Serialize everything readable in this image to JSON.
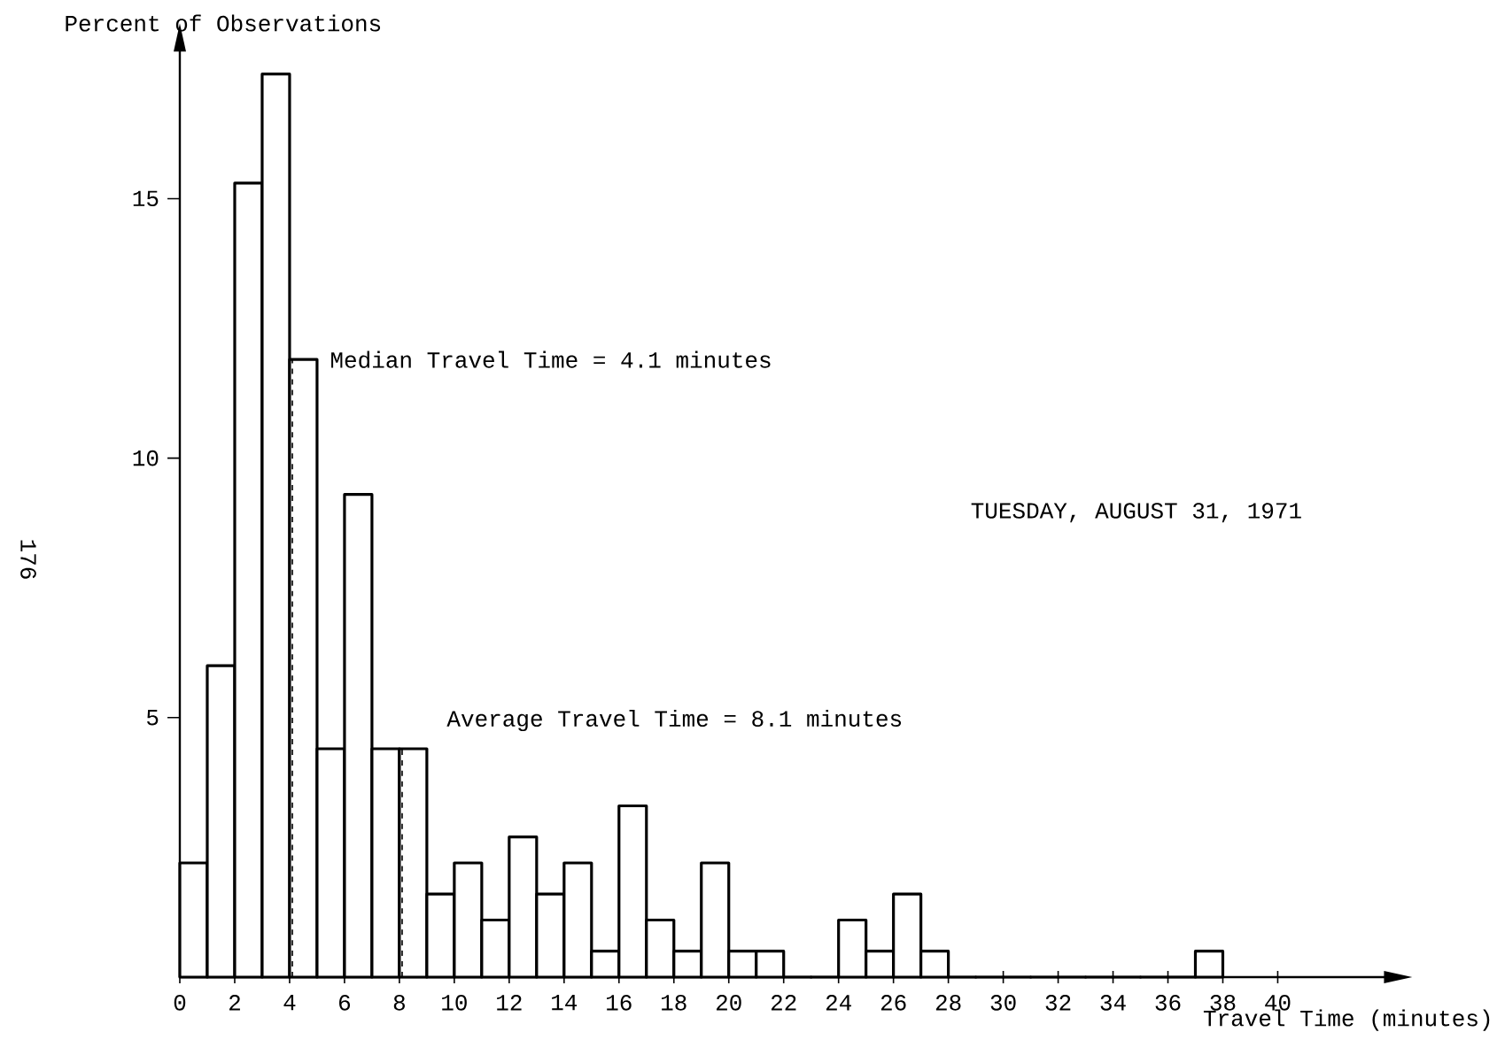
{
  "chart_data": {
    "type": "histogram",
    "xlabel": "Travel Time (minutes)",
    "ylabel": "Percent of Observations",
    "bins": [
      0,
      1,
      2,
      3,
      4,
      5,
      6,
      7,
      8,
      9,
      10,
      11,
      12,
      13,
      14,
      15,
      16,
      17,
      18,
      19,
      20,
      21,
      22,
      23,
      24,
      25,
      26,
      27,
      28,
      29,
      30,
      31,
      32,
      33,
      34,
      35,
      36,
      37,
      38
    ],
    "values": [
      2.2,
      6.0,
      15.3,
      17.4,
      11.9,
      4.4,
      9.3,
      4.4,
      4.4,
      1.6,
      2.2,
      1.1,
      2.7,
      1.6,
      2.2,
      0.5,
      3.3,
      1.1,
      0.5,
      2.2,
      0.5,
      0.5,
      0,
      0,
      1.1,
      0.5,
      1.6,
      0.5,
      0,
      0,
      0,
      0,
      0,
      0,
      0,
      0,
      0,
      0.5
    ],
    "color": "#000000",
    "xlim": [
      0,
      44
    ],
    "ylim": [
      0,
      17.9
    ],
    "xticks": [
      0,
      2,
      4,
      6,
      8,
      10,
      12,
      14,
      16,
      18,
      20,
      22,
      24,
      26,
      28,
      30,
      32,
      34,
      36,
      38,
      40
    ],
    "yticks": [
      5,
      10,
      15
    ],
    "grid": false,
    "ref_lines": [
      {
        "axis": "x",
        "value": 4.1,
        "label": "Median Travel Time = 4.1 minutes",
        "line_style": "dashed"
      },
      {
        "axis": "x",
        "value": 8.1,
        "label": "Average Travel Time = 8.1 minutes",
        "line_style": "dashed"
      }
    ],
    "annotations": [
      "TUESDAY, AUGUST 31, 1971",
      "176"
    ]
  }
}
